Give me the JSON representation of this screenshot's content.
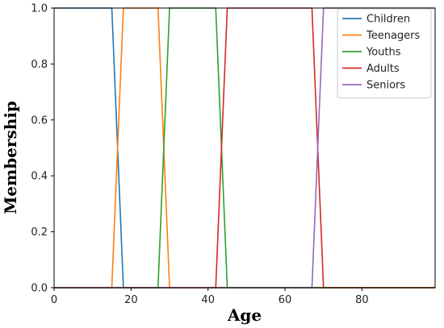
{
  "chart_data": {
    "type": "line",
    "title": "",
    "xlabel": "Age",
    "ylabel": "Membership",
    "xlim": [
      0,
      99
    ],
    "ylim": [
      0,
      1.0
    ],
    "x_ticks": [
      0,
      20,
      40,
      60,
      80
    ],
    "x_tick_labels": [
      "0",
      "20",
      "40",
      "60",
      "80"
    ],
    "y_ticks": [
      0.0,
      0.2,
      0.4,
      0.6,
      0.8,
      1.0
    ],
    "y_tick_labels": [
      "0.0",
      "0.2",
      "0.4",
      "0.6",
      "0.8",
      "1.0"
    ],
    "grid": false,
    "legend_position": "top-right",
    "series": [
      {
        "name": "Children",
        "color": "#1f77b4",
        "x": [
          0,
          15,
          18,
          99
        ],
        "y": [
          1,
          1,
          0,
          0
        ]
      },
      {
        "name": "Teenagers",
        "color": "#ff7f0e",
        "x": [
          0,
          15,
          18,
          27,
          30,
          99
        ],
        "y": [
          0,
          0,
          1,
          1,
          0,
          0
        ]
      },
      {
        "name": "Youths",
        "color": "#2ca02c",
        "x": [
          0,
          27,
          30,
          42,
          45,
          99
        ],
        "y": [
          0,
          0,
          1,
          1,
          0,
          0
        ]
      },
      {
        "name": "Adults",
        "color": "#d62728",
        "x": [
          0,
          42,
          45,
          67,
          70,
          99
        ],
        "y": [
          0,
          0,
          1,
          1,
          0,
          0
        ]
      },
      {
        "name": "Seniors",
        "color": "#9467bd",
        "x": [
          0,
          67,
          70,
          99
        ],
        "y": [
          0,
          0,
          1,
          1
        ]
      }
    ]
  }
}
